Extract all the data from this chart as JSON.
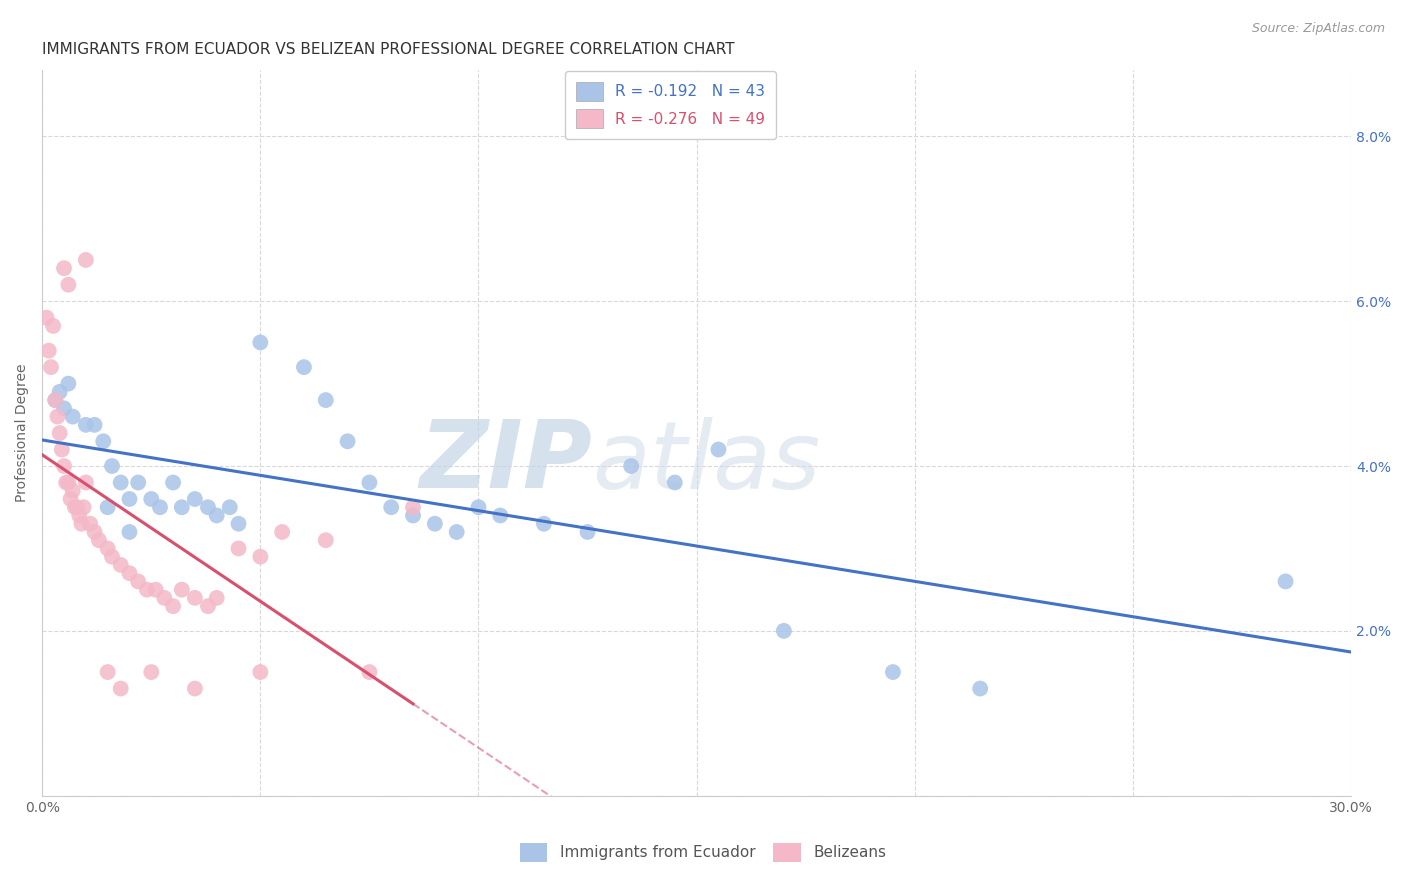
{
  "title": "IMMIGRANTS FROM ECUADOR VS BELIZEAN PROFESSIONAL DEGREE CORRELATION CHART",
  "source": "Source: ZipAtlas.com",
  "ylabel": "Professional Degree",
  "xlim": [
    0,
    30
  ],
  "ylim": [
    0,
    8.8
  ],
  "legend_label1": "Immigrants from Ecuador",
  "legend_label2": "Belizeans",
  "ecuador_R": -0.192,
  "ecuador_N": 43,
  "belize_R": -0.276,
  "belize_N": 49,
  "ecuador_points": [
    [
      0.3,
      4.8
    ],
    [
      0.4,
      4.9
    ],
    [
      0.5,
      4.7
    ],
    [
      0.6,
      5.0
    ],
    [
      0.7,
      4.6
    ],
    [
      1.0,
      4.5
    ],
    [
      1.2,
      4.5
    ],
    [
      1.4,
      4.3
    ],
    [
      1.6,
      4.0
    ],
    [
      1.8,
      3.8
    ],
    [
      2.0,
      3.6
    ],
    [
      2.2,
      3.8
    ],
    [
      2.5,
      3.6
    ],
    [
      2.7,
      3.5
    ],
    [
      3.0,
      3.8
    ],
    [
      3.2,
      3.5
    ],
    [
      3.5,
      3.6
    ],
    [
      3.8,
      3.5
    ],
    [
      4.0,
      3.4
    ],
    [
      4.3,
      3.5
    ],
    [
      4.5,
      3.3
    ],
    [
      5.0,
      5.5
    ],
    [
      6.0,
      5.2
    ],
    [
      6.5,
      4.8
    ],
    [
      7.0,
      4.3
    ],
    [
      7.5,
      3.8
    ],
    [
      8.0,
      3.5
    ],
    [
      8.5,
      3.4
    ],
    [
      9.0,
      3.3
    ],
    [
      9.5,
      3.2
    ],
    [
      10.0,
      3.5
    ],
    [
      10.5,
      3.4
    ],
    [
      11.5,
      3.3
    ],
    [
      12.5,
      3.2
    ],
    [
      13.5,
      4.0
    ],
    [
      14.5,
      3.8
    ],
    [
      15.5,
      4.2
    ],
    [
      17.0,
      2.0
    ],
    [
      19.5,
      1.5
    ],
    [
      21.5,
      1.3
    ],
    [
      28.5,
      2.6
    ],
    [
      1.5,
      3.5
    ],
    [
      2.0,
      3.2
    ]
  ],
  "belize_points": [
    [
      0.1,
      5.8
    ],
    [
      0.15,
      5.4
    ],
    [
      0.2,
      5.2
    ],
    [
      0.25,
      5.7
    ],
    [
      0.3,
      4.8
    ],
    [
      0.35,
      4.6
    ],
    [
      0.4,
      4.4
    ],
    [
      0.45,
      4.2
    ],
    [
      0.5,
      4.0
    ],
    [
      0.55,
      3.8
    ],
    [
      0.6,
      3.8
    ],
    [
      0.65,
      3.6
    ],
    [
      0.7,
      3.7
    ],
    [
      0.75,
      3.5
    ],
    [
      0.8,
      3.5
    ],
    [
      0.85,
      3.4
    ],
    [
      0.9,
      3.3
    ],
    [
      0.95,
      3.5
    ],
    [
      1.0,
      3.8
    ],
    [
      1.1,
      3.3
    ],
    [
      1.2,
      3.2
    ],
    [
      1.3,
      3.1
    ],
    [
      1.5,
      3.0
    ],
    [
      1.6,
      2.9
    ],
    [
      1.8,
      2.8
    ],
    [
      2.0,
      2.7
    ],
    [
      2.2,
      2.6
    ],
    [
      2.4,
      2.5
    ],
    [
      2.6,
      2.5
    ],
    [
      2.8,
      2.4
    ],
    [
      3.0,
      2.3
    ],
    [
      3.2,
      2.5
    ],
    [
      3.5,
      2.4
    ],
    [
      3.8,
      2.3
    ],
    [
      4.0,
      2.4
    ],
    [
      4.5,
      3.0
    ],
    [
      5.0,
      2.9
    ],
    [
      5.5,
      3.2
    ],
    [
      6.5,
      3.1
    ],
    [
      8.5,
      3.5
    ],
    [
      0.5,
      6.4
    ],
    [
      0.6,
      6.2
    ],
    [
      1.0,
      6.5
    ],
    [
      1.5,
      1.5
    ],
    [
      1.8,
      1.3
    ],
    [
      2.5,
      1.5
    ],
    [
      3.5,
      1.3
    ],
    [
      5.0,
      1.5
    ],
    [
      7.5,
      1.5
    ]
  ],
  "ecuador_color": "#aac4e8",
  "belize_color": "#f4b8c8",
  "ecuador_line_color": "#4472c4",
  "belize_line_color": "#d94f6e",
  "background_color": "#ffffff",
  "grid_color": "#d8d8d8",
  "watermark_zip": "ZIP",
  "watermark_atlas": "atlas",
  "title_fontsize": 11,
  "axis_label_fontsize": 10,
  "tick_fontsize": 10,
  "source_text": "Source: ZipAtlas.com"
}
